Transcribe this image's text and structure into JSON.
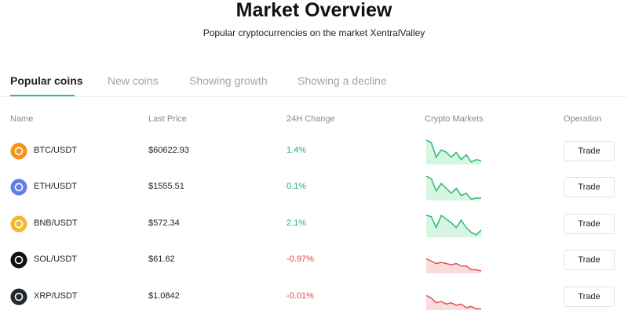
{
  "header": {
    "title": "Market Overview",
    "subtitle": "Popular cryptocurrencies on the market XentralValley"
  },
  "tabs": [
    "Popular coins",
    "New coins",
    "Showing growth",
    "Showing a decline"
  ],
  "columns": [
    "Name",
    "Last Price",
    "24H Change",
    "Crypto Markets",
    "Operation"
  ],
  "rows": [
    {
      "pair": "BTC/USDT",
      "price": "$60622.93",
      "change": "1.4%",
      "trend": [
        10,
        9,
        3,
        6,
        5,
        3,
        5,
        2,
        4,
        1,
        2,
        1.5
      ],
      "action": "Trade"
    },
    {
      "pair": "ETH/USDT",
      "price": "$1555.51",
      "change": "0.1%",
      "trend": [
        10,
        9,
        4,
        7,
        5,
        3,
        5,
        2,
        3,
        0.5,
        1,
        1
      ],
      "action": "Trade"
    },
    {
      "pair": "BNB/USDT",
      "price": "$572.34",
      "change": "2.1%",
      "trend": [
        9,
        8.5,
        4,
        9,
        7.5,
        6,
        4,
        7,
        4,
        2,
        1,
        3
      ],
      "action": "Trade"
    },
    {
      "pair": "SOL/USDT",
      "price": "$61.62",
      "change": "-0.97%",
      "trend": [
        6,
        5,
        4,
        4.5,
        4,
        3.5,
        4,
        3,
        3,
        1.5,
        1.5,
        1
      ],
      "action": "Trade"
    },
    {
      "pair": "XRP/USDT",
      "price": "$1.0842",
      "change": "-0.01%",
      "trend": [
        6,
        5,
        3,
        3.5,
        2.5,
        3,
        2,
        2.5,
        1,
        1.5,
        0.5,
        0.5
      ],
      "action": "Trade"
    }
  ]
}
